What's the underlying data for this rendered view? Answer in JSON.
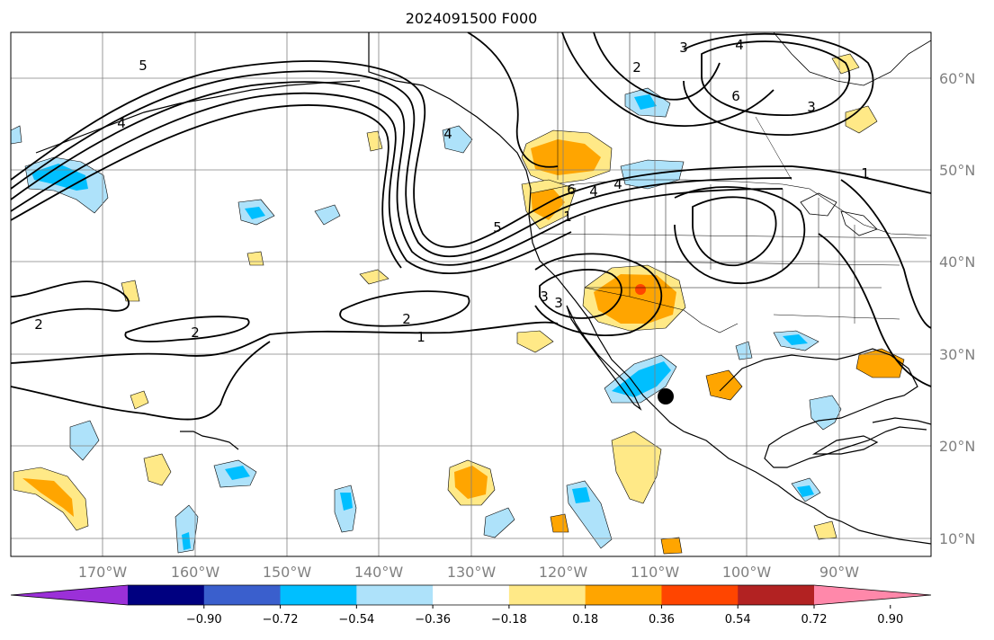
{
  "title": "2024091500 F000",
  "map": {
    "lon_labels": [
      "170°W",
      "160°W",
      "150°W",
      "140°W",
      "130°W",
      "120°W",
      "110°W",
      "100°W",
      "90°W"
    ],
    "lat_labels": [
      "60°N",
      "50°N",
      "40°N",
      "30°N",
      "20°N",
      "10°N"
    ],
    "contour_labels": [
      "2",
      "2",
      "1",
      "2",
      "3",
      "3",
      "1",
      "6",
      "5",
      "4",
      "4",
      "4",
      "3",
      "2",
      "3",
      "6",
      "5",
      "4",
      "1",
      "4"
    ],
    "colors": {
      "land_outline": "#000000",
      "grid": "#808080",
      "background": "#ffffff"
    }
  },
  "colorbar": {
    "tick_labels": [
      "−0.90",
      "−0.72",
      "−0.54",
      "−0.36",
      "−0.18",
      "0.18",
      "0.36",
      "0.54",
      "0.72",
      "0.90"
    ],
    "bins": [
      "#9b30d8",
      "#000080",
      "#3a5fcd",
      "#00bfff",
      "#aee2fa",
      "#ffffff",
      "#ffe987",
      "#ffa500",
      "#ff4500",
      "#b22222",
      "#ff88aa"
    ],
    "extend": "both"
  }
}
